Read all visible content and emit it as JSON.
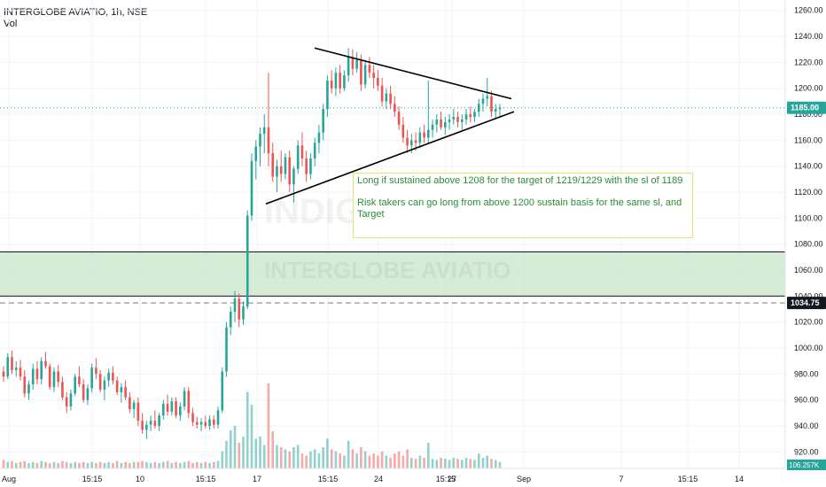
{
  "header": {
    "symbol": "INTERGLOBE AVIATIO, 1h, NSE",
    "volume_label": "Vol"
  },
  "watermark": {
    "top": "INDIGO",
    "zone": "INTERGLOBE AVIATIO"
  },
  "annotation": {
    "line1": "Long if sustained above 1208 for the target of 1219/1229 with the sl of 1189",
    "line2": "Risk takers can go long from  above 1200 sustain basis for the same sl, and Target"
  },
  "colors": {
    "up": "#26a69a",
    "down": "#ef5350",
    "zone": "#c8e6c9",
    "last_price_badge": "#26a69a",
    "level_badge": "#131722",
    "volume_badge": "#26a69a"
  },
  "chart_data": {
    "type": "candlestick",
    "symbol": "INTERGLOBE AVIATIO",
    "interval": "1h",
    "exchange": "NSE",
    "y_ticks": [
      920,
      940,
      960,
      980,
      1000,
      1020,
      1040,
      1060,
      1080,
      1100,
      1120,
      1140,
      1160,
      1180,
      1200,
      1220,
      1240,
      1260
    ],
    "ylim": [
      908,
      1268
    ],
    "x_ticks": [
      "Aug",
      "15:15",
      "10",
      "15:15",
      "17",
      "15:15",
      "24",
      "15:15",
      "27",
      "Sep",
      "7",
      "15:15",
      "14"
    ],
    "last_price": {
      "value": 1185,
      "label": "1185.00"
    },
    "level_line": {
      "value": 1034.75,
      "label": "1034.75"
    },
    "volume_readout": "106.257K",
    "demand_zone": [
      1040,
      1074
    ],
    "triangle": {
      "upper_trendline": [
        1231,
        1192
      ],
      "lower_trendline": [
        1111,
        1182
      ]
    },
    "candles": [
      [
        982,
        986,
        974,
        978
      ],
      [
        978,
        996,
        976,
        993
      ],
      [
        993,
        998,
        980,
        983
      ],
      [
        983,
        990,
        978,
        985
      ],
      [
        985,
        991,
        975,
        978
      ],
      [
        978,
        983,
        962,
        965
      ],
      [
        965,
        975,
        960,
        972
      ],
      [
        972,
        988,
        968,
        984
      ],
      [
        984,
        990,
        972,
        976
      ],
      [
        976,
        993,
        972,
        990
      ],
      [
        990,
        997,
        984,
        986
      ],
      [
        986,
        988,
        968,
        970
      ],
      [
        970,
        985,
        966,
        982
      ],
      [
        982,
        987,
        970,
        974
      ],
      [
        974,
        978,
        960,
        962
      ],
      [
        962,
        966,
        950,
        955
      ],
      [
        955,
        968,
        952,
        965
      ],
      [
        965,
        980,
        963,
        978
      ],
      [
        978,
        986,
        970,
        972
      ],
      [
        972,
        976,
        958,
        960
      ],
      [
        960,
        972,
        956,
        969
      ],
      [
        969,
        988,
        966,
        985
      ],
      [
        985,
        992,
        976,
        980
      ],
      [
        980,
        983,
        966,
        968
      ],
      [
        968,
        978,
        960,
        975
      ],
      [
        975,
        984,
        970,
        981
      ],
      [
        981,
        986,
        972,
        975
      ],
      [
        975,
        978,
        964,
        966
      ],
      [
        966,
        973,
        958,
        970
      ],
      [
        970,
        975,
        960,
        962
      ],
      [
        962,
        966,
        950,
        953
      ],
      [
        953,
        960,
        946,
        958
      ],
      [
        958,
        962,
        940,
        944
      ],
      [
        944,
        950,
        934,
        937
      ],
      [
        937,
        944,
        930,
        941
      ],
      [
        941,
        948,
        936,
        944
      ],
      [
        944,
        952,
        938,
        940
      ],
      [
        940,
        950,
        936,
        948
      ],
      [
        948,
        960,
        945,
        957
      ],
      [
        957,
        964,
        948,
        951
      ],
      [
        951,
        962,
        948,
        959
      ],
      [
        959,
        962,
        946,
        948
      ],
      [
        948,
        958,
        944,
        955
      ],
      [
        955,
        970,
        952,
        967
      ],
      [
        967,
        970,
        946,
        950
      ],
      [
        950,
        954,
        940,
        943
      ],
      [
        943,
        947,
        938,
        941
      ],
      [
        941,
        946,
        936,
        943
      ],
      [
        943,
        948,
        938,
        940
      ],
      [
        940,
        948,
        937,
        945
      ],
      [
        945,
        948,
        938,
        941
      ],
      [
        941,
        955,
        938,
        952
      ],
      [
        952,
        985,
        950,
        982
      ],
      [
        982,
        1020,
        978,
        1016
      ],
      [
        1016,
        1032,
        1010,
        1028
      ],
      [
        1028,
        1044,
        1020,
        1038
      ],
      [
        1038,
        1042,
        1016,
        1022
      ],
      [
        1022,
        1036,
        1018,
        1032
      ],
      [
        1032,
        1106,
        1030,
        1102
      ],
      [
        1102,
        1150,
        1098,
        1144
      ],
      [
        1144,
        1160,
        1130,
        1155
      ],
      [
        1155,
        1170,
        1140,
        1165
      ],
      [
        1165,
        1180,
        1150,
        1170
      ],
      [
        1170,
        1212,
        1140,
        1150
      ],
      [
        1150,
        1158,
        1128,
        1132
      ],
      [
        1132,
        1145,
        1120,
        1140
      ],
      [
        1140,
        1152,
        1128,
        1134
      ],
      [
        1134,
        1150,
        1130,
        1147
      ],
      [
        1147,
        1152,
        1120,
        1126
      ],
      [
        1126,
        1140,
        1112,
        1138
      ],
      [
        1138,
        1160,
        1134,
        1156
      ],
      [
        1156,
        1166,
        1140,
        1146
      ],
      [
        1146,
        1152,
        1128,
        1134
      ],
      [
        1134,
        1150,
        1130,
        1146
      ],
      [
        1146,
        1162,
        1140,
        1158
      ],
      [
        1158,
        1172,
        1150,
        1166
      ],
      [
        1166,
        1188,
        1160,
        1184
      ],
      [
        1184,
        1210,
        1178,
        1206
      ],
      [
        1206,
        1214,
        1196,
        1200
      ],
      [
        1200,
        1216,
        1194,
        1212
      ],
      [
        1212,
        1218,
        1196,
        1200
      ],
      [
        1200,
        1214,
        1198,
        1210
      ],
      [
        1210,
        1231,
        1205,
        1224
      ],
      [
        1224,
        1230,
        1210,
        1215
      ],
      [
        1215,
        1228,
        1212,
        1222
      ],
      [
        1222,
        1226,
        1198,
        1203
      ],
      [
        1203,
        1222,
        1200,
        1218
      ],
      [
        1218,
        1224,
        1208,
        1212
      ],
      [
        1212,
        1218,
        1200,
        1208
      ],
      [
        1208,
        1214,
        1198,
        1202
      ],
      [
        1202,
        1208,
        1186,
        1190
      ],
      [
        1190,
        1200,
        1184,
        1196
      ],
      [
        1196,
        1202,
        1184,
        1188
      ],
      [
        1188,
        1194,
        1178,
        1182
      ],
      [
        1182,
        1186,
        1168,
        1172
      ],
      [
        1172,
        1178,
        1158,
        1162
      ],
      [
        1162,
        1168,
        1150,
        1156
      ],
      [
        1156,
        1165,
        1150,
        1160
      ],
      [
        1160,
        1166,
        1152,
        1158
      ],
      [
        1158,
        1170,
        1154,
        1166
      ],
      [
        1166,
        1172,
        1158,
        1162
      ],
      [
        1162,
        1206,
        1158,
        1168
      ],
      [
        1168,
        1176,
        1162,
        1172
      ],
      [
        1172,
        1180,
        1166,
        1176
      ],
      [
        1176,
        1182,
        1168,
        1170
      ],
      [
        1170,
        1178,
        1164,
        1174
      ],
      [
        1174,
        1180,
        1168,
        1176
      ],
      [
        1176,
        1184,
        1172,
        1178
      ],
      [
        1178,
        1182,
        1170,
        1174
      ],
      [
        1174,
        1180,
        1168,
        1176
      ],
      [
        1176,
        1184,
        1172,
        1180
      ],
      [
        1180,
        1186,
        1174,
        1178
      ],
      [
        1178,
        1184,
        1174,
        1182
      ],
      [
        1182,
        1192,
        1178,
        1188
      ],
      [
        1188,
        1196,
        1182,
        1192
      ],
      [
        1192,
        1208,
        1186,
        1194
      ],
      [
        1194,
        1198,
        1178,
        1182
      ],
      [
        1182,
        1188,
        1176,
        1184
      ],
      [
        1184,
        1188,
        1178,
        1185
      ]
    ],
    "volumes": [
      0.8,
      0.6,
      0.7,
      0.5,
      0.6,
      0.7,
      0.5,
      0.6,
      0.5,
      0.7,
      0.6,
      0.5,
      0.6,
      0.5,
      0.7,
      0.6,
      0.5,
      0.6,
      0.5,
      0.6,
      0.5,
      0.6,
      0.5,
      0.6,
      0.5,
      0.6,
      0.5,
      0.7,
      0.5,
      0.6,
      0.5,
      0.6,
      0.6,
      0.7,
      0.6,
      0.5,
      0.6,
      0.5,
      0.6,
      0.7,
      0.5,
      0.6,
      0.5,
      0.6,
      0.7,
      0.5,
      0.6,
      0.5,
      0.6,
      0.5,
      0.6,
      0.7,
      1.6,
      2.6,
      3.6,
      4.0,
      2.4,
      3.0,
      7.2,
      6.0,
      2.8,
      3.0,
      2.2,
      8.0,
      3.5,
      2.2,
      2.0,
      1.8,
      1.6,
      2.0,
      2.2,
      1.4,
      1.2,
      1.6,
      1.8,
      1.4,
      2.0,
      2.8,
      1.8,
      1.6,
      1.4,
      1.2,
      2.6,
      1.8,
      1.4,
      2.0,
      1.6,
      1.2,
      1.4,
      1.2,
      1.6,
      1.2,
      1.0,
      1.4,
      1.6,
      1.2,
      1.8,
      1.0,
      0.9,
      1.2,
      1.0,
      2.4,
      0.9,
      0.8,
      1.0,
      0.9,
      0.8,
      1.0,
      0.9,
      0.8,
      1.0,
      0.9,
      0.8,
      1.4,
      1.0,
      1.2,
      0.9,
      0.8,
      0.6
    ]
  }
}
